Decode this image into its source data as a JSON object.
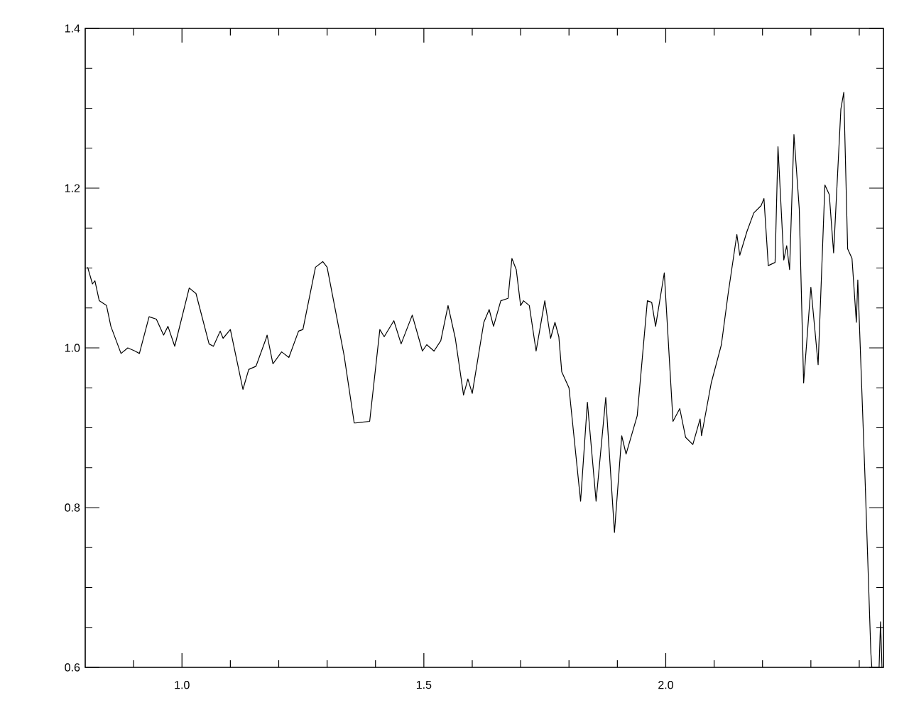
{
  "chart_data": {
    "type": "line",
    "x": [
      0.805,
      0.815,
      0.82,
      0.829,
      0.844,
      0.853,
      0.874,
      0.888,
      0.903,
      0.912,
      0.932,
      0.947,
      0.962,
      0.971,
      0.985,
      1.015,
      1.029,
      1.056,
      1.065,
      1.079,
      1.085,
      1.1,
      1.126,
      1.138,
      1.153,
      1.174,
      1.176,
      1.188,
      1.206,
      1.221,
      1.241,
      1.25,
      1.276,
      1.291,
      1.3,
      1.335,
      1.356,
      1.359,
      1.388,
      1.409,
      1.418,
      1.438,
      1.453,
      1.476,
      1.497,
      1.506,
      1.521,
      1.535,
      1.55,
      1.565,
      1.582,
      1.591,
      1.6,
      1.624,
      1.635,
      1.644,
      1.659,
      1.674,
      1.682,
      1.691,
      1.7,
      1.706,
      1.718,
      1.732,
      1.75,
      1.762,
      1.771,
      1.779,
      1.785,
      1.8,
      1.824,
      1.838,
      1.856,
      1.876,
      1.894,
      1.909,
      1.918,
      1.941,
      1.962,
      1.971,
      1.979,
      1.997,
      2.015,
      2.029,
      2.041,
      2.056,
      2.071,
      2.074,
      2.094,
      2.115,
      2.129,
      2.147,
      2.153,
      2.168,
      2.182,
      2.197,
      2.203,
      2.212,
      2.226,
      2.232,
      2.244,
      2.25,
      2.256,
      2.265,
      2.276,
      2.285,
      2.3,
      2.315,
      2.329,
      2.338,
      2.347,
      2.362,
      2.368,
      2.376,
      2.385,
      2.394,
      2.397,
      2.412,
      2.424,
      2.426,
      2.441,
      2.444,
      2.447
    ],
    "values": [
      1.101,
      1.08,
      1.084,
      1.059,
      1.053,
      1.027,
      0.993,
      1.0,
      0.996,
      0.993,
      1.039,
      1.036,
      1.016,
      1.027,
      1.002,
      1.075,
      1.068,
      1.005,
      1.002,
      1.021,
      1.012,
      1.023,
      0.948,
      0.973,
      0.977,
      1.012,
      1.016,
      0.98,
      0.995,
      0.988,
      1.021,
      1.023,
      1.101,
      1.108,
      1.101,
      0.991,
      0.906,
      0.906,
      0.908,
      1.023,
      1.014,
      1.034,
      1.005,
      1.041,
      0.996,
      1.004,
      0.996,
      1.009,
      1.053,
      1.012,
      0.941,
      0.961,
      0.943,
      1.032,
      1.048,
      1.027,
      1.059,
      1.062,
      1.112,
      1.098,
      1.053,
      1.059,
      1.053,
      0.996,
      1.059,
      1.012,
      1.032,
      1.014,
      0.97,
      0.95,
      0.808,
      0.932,
      0.808,
      0.938,
      0.769,
      0.89,
      0.867,
      0.915,
      1.059,
      1.057,
      1.027,
      1.094,
      0.908,
      0.924,
      0.888,
      0.879,
      0.911,
      0.89,
      0.956,
      1.004,
      1.068,
      1.142,
      1.116,
      1.146,
      1.169,
      1.178,
      1.187,
      1.103,
      1.107,
      1.252,
      1.11,
      1.128,
      1.098,
      1.267,
      1.174,
      0.956,
      1.076,
      0.979,
      1.204,
      1.192,
      1.119,
      1.299,
      1.32,
      1.124,
      1.112,
      1.032,
      1.085,
      0.836,
      0.618,
      0.6,
      0.6,
      0.657,
      0.6
    ],
    "color": "#000000",
    "xlim": [
      0.8,
      2.45
    ],
    "ylim": [
      0.6,
      1.4
    ],
    "xticks": [
      {
        "value": 0.9,
        "label": null
      },
      {
        "value": 1.0,
        "label": "1.0"
      },
      {
        "value": 1.1,
        "label": null
      },
      {
        "value": 1.2,
        "label": null
      },
      {
        "value": 1.3,
        "label": null
      },
      {
        "value": 1.4,
        "label": null
      },
      {
        "value": 1.5,
        "label": "1.5"
      },
      {
        "value": 1.6,
        "label": null
      },
      {
        "value": 1.7,
        "label": null
      },
      {
        "value": 1.8,
        "label": null
      },
      {
        "value": 1.9,
        "label": null
      },
      {
        "value": 2.0,
        "label": "2.0"
      },
      {
        "value": 2.1,
        "label": null
      },
      {
        "value": 2.2,
        "label": null
      },
      {
        "value": 2.3,
        "label": null
      },
      {
        "value": 2.4,
        "label": null
      }
    ],
    "yticks": [
      {
        "value": 0.6,
        "label": "0.6"
      },
      {
        "value": 0.65,
        "label": null
      },
      {
        "value": 0.7,
        "label": null
      },
      {
        "value": 0.75,
        "label": null
      },
      {
        "value": 0.8,
        "label": "0.8"
      },
      {
        "value": 0.85,
        "label": null
      },
      {
        "value": 0.9,
        "label": null
      },
      {
        "value": 0.95,
        "label": null
      },
      {
        "value": 1.0,
        "label": "1.0"
      },
      {
        "value": 1.05,
        "label": null
      },
      {
        "value": 1.1,
        "label": null
      },
      {
        "value": 1.15,
        "label": null
      },
      {
        "value": 1.2,
        "label": "1.2"
      },
      {
        "value": 1.25,
        "label": null
      },
      {
        "value": 1.3,
        "label": null
      },
      {
        "value": 1.35,
        "label": null
      },
      {
        "value": 1.4,
        "label": "1.4"
      }
    ]
  }
}
